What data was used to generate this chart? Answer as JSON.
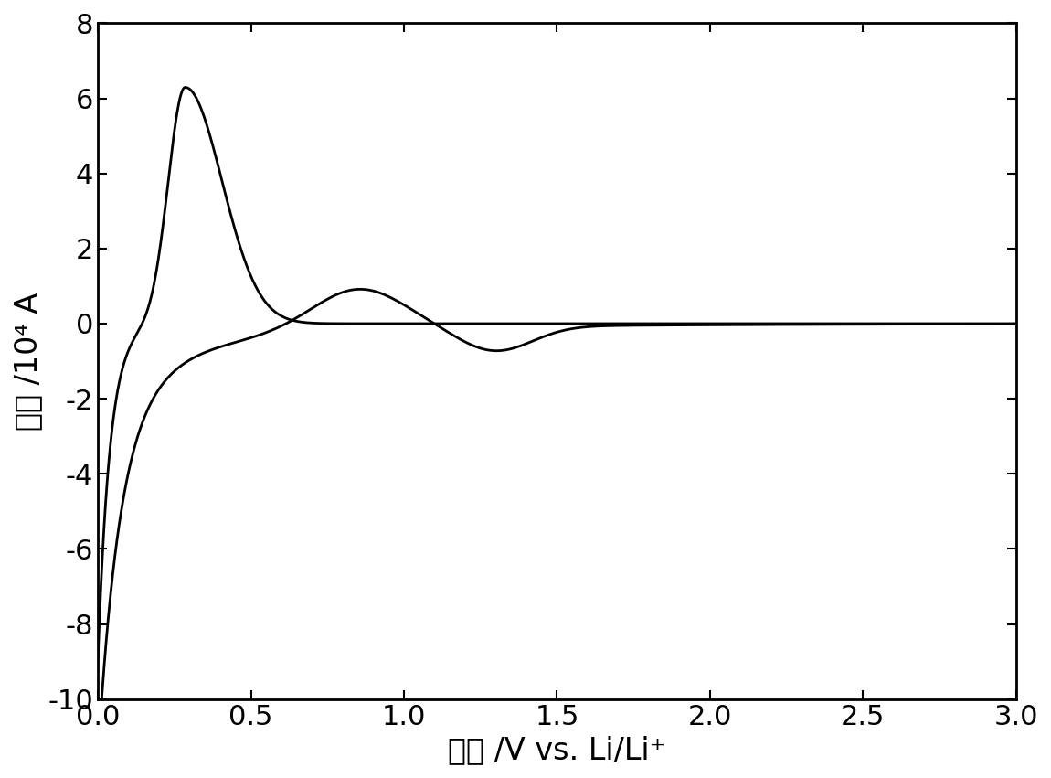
{
  "title": "",
  "xlabel": "电压 /V vs. Li/Li⁺",
  "ylabel": "电流 /10⁴ A",
  "xlim": [
    0.0,
    3.0
  ],
  "ylim": [
    -10,
    8
  ],
  "xticks": [
    0.0,
    0.5,
    1.0,
    1.5,
    2.0,
    2.5,
    3.0
  ],
  "yticks": [
    -10,
    -8,
    -6,
    -4,
    -2,
    0,
    2,
    4,
    6,
    8
  ],
  "line_color": "#000000",
  "line_width": 2.0,
  "background_color": "#ffffff",
  "xlabel_fontsize": 24,
  "ylabel_fontsize": 24,
  "tick_fontsize": 22,
  "spine_linewidth": 2.0
}
